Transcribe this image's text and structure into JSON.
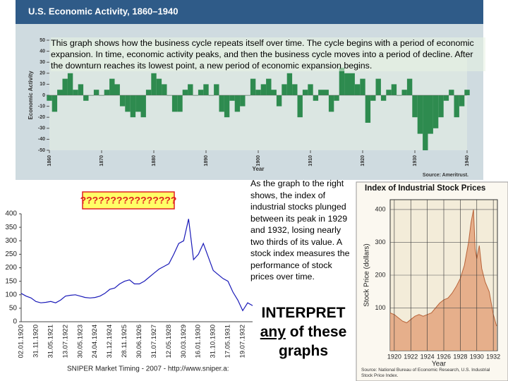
{
  "slide": {
    "overlay_text": "This graph shows how the business cycle repeats itself over time. The cycle begins with a period of economic expansion. In time, economic activity peaks, and then the business cycle moves into a period of decline. After the downturn reaches its lowest point, a new period of economic expansion begins.",
    "side_text": "As the graph  to the right shows, the index of industrial stocks plunged between its peak in 1929 and 1932, losing nearly two thirds of its value. A stock index measures the performance of stock prices over time.",
    "prompt": [
      "INTERPRET",
      "any",
      "of these graphs"
    ]
  },
  "chart_data": [
    {
      "type": "bars",
      "title": "U.S. Economic Activity, 1860–1940",
      "ylabel": "Economic Activity",
      "xlabel": "Year",
      "source": "Source: Ameritrust.",
      "color": "#2e8b4f",
      "x": [
        1860,
        1861,
        1862,
        1863,
        1864,
        1865,
        1866,
        1867,
        1868,
        1869,
        1870,
        1871,
        1872,
        1873,
        1874,
        1875,
        1876,
        1877,
        1878,
        1879,
        1880,
        1881,
        1882,
        1883,
        1884,
        1885,
        1886,
        1887,
        1888,
        1889,
        1890,
        1891,
        1892,
        1893,
        1894,
        1895,
        1896,
        1897,
        1898,
        1899,
        1900,
        1901,
        1902,
        1903,
        1904,
        1905,
        1906,
        1907,
        1908,
        1909,
        1910,
        1911,
        1912,
        1913,
        1914,
        1915,
        1916,
        1917,
        1918,
        1919,
        1920,
        1921,
        1922,
        1923,
        1924,
        1925,
        1926,
        1927,
        1928,
        1929,
        1930,
        1931,
        1932,
        1933,
        1934,
        1935,
        1936,
        1937,
        1938,
        1939,
        1940
      ],
      "values": [
        -5,
        -15,
        5,
        15,
        20,
        5,
        10,
        -5,
        0,
        5,
        0,
        5,
        15,
        10,
        -10,
        -15,
        -20,
        -15,
        -20,
        5,
        20,
        15,
        10,
        0,
        -15,
        -15,
        5,
        10,
        0,
        5,
        10,
        0,
        10,
        -15,
        -20,
        -5,
        -15,
        -10,
        0,
        15,
        5,
        10,
        15,
        5,
        -10,
        10,
        20,
        10,
        -20,
        5,
        10,
        -5,
        5,
        5,
        -15,
        -5,
        25,
        20,
        20,
        10,
        15,
        -25,
        -5,
        15,
        -5,
        5,
        10,
        0,
        5,
        15,
        -20,
        -35,
        -50,
        -35,
        -30,
        -20,
        -5,
        5,
        -20,
        -10,
        5
      ],
      "xlim": [
        1860,
        1940
      ],
      "ylim": [
        -50,
        50
      ],
      "xticks": [
        1860,
        1870,
        1880,
        1890,
        1900,
        1910,
        1920,
        1930,
        1940
      ],
      "yticks": [
        -50,
        -40,
        -30,
        -20,
        -10,
        0,
        10,
        20,
        30,
        40,
        50
      ]
    },
    {
      "type": "line",
      "title": "????????????????",
      "footer": "SNIPER Market Timing - 2007 - http://www.sniper.a:",
      "color": "#1a1ab8",
      "categories": [
        "02.01.1920",
        null,
        null,
        "31.11.1920",
        null,
        null,
        "31.05.1921",
        null,
        null,
        "13.07.1922",
        null,
        null,
        "30.05.1923",
        null,
        null,
        "24.04.1924",
        null,
        null,
        "31.12.1924",
        null,
        null,
        "28.11.1925",
        null,
        null,
        "30.06.1926",
        null,
        null,
        "31.07.1927",
        null,
        null,
        "12.05.1928",
        null,
        null,
        "30.03.1929",
        null,
        null,
        "16.01.1930",
        null,
        null,
        "31.10.1930",
        null,
        null,
        "17.05.1931",
        null,
        null,
        "19.07.1932",
        null,
        null
      ],
      "values": [
        105,
        95,
        88,
        75,
        70,
        72,
        75,
        70,
        80,
        95,
        98,
        100,
        95,
        90,
        88,
        90,
        95,
        105,
        120,
        125,
        140,
        150,
        155,
        140,
        140,
        150,
        165,
        180,
        195,
        205,
        215,
        250,
        290,
        300,
        381,
        230,
        250,
        290,
        240,
        190,
        175,
        160,
        150,
        110,
        80,
        41,
        70,
        60
      ],
      "ylim": [
        0,
        400
      ],
      "yticks": [
        0,
        50,
        100,
        150,
        200,
        250,
        300,
        350,
        400
      ]
    },
    {
      "type": "area",
      "title": "Index of Industrial Stock Prices",
      "ylabel": "Stock Price (dollars)",
      "xlabel": "Year",
      "source": "Source: National Bureau of Economic Research, U.S. Industrial Stock Price Index.",
      "color": "#e3a57c",
      "grid": true,
      "x": [
        1919.5,
        1920,
        1920.5,
        1921,
        1921.5,
        1922,
        1922.5,
        1923,
        1923.5,
        1924,
        1924.5,
        1925,
        1925.5,
        1926,
        1926.5,
        1927,
        1927.5,
        1928,
        1928.5,
        1929,
        1929.3,
        1929.6,
        1929.8,
        1930,
        1930.3,
        1930.6,
        1931,
        1931.5,
        1932,
        1932.4
      ],
      "values": [
        85,
        80,
        70,
        60,
        55,
        65,
        75,
        80,
        75,
        80,
        85,
        100,
        115,
        125,
        130,
        145,
        165,
        190,
        230,
        300,
        360,
        400,
        280,
        250,
        290,
        220,
        180,
        150,
        80,
        45
      ],
      "xlim": [
        1919.5,
        1932.5
      ],
      "ylim": [
        -30,
        430
      ],
      "xticks": [
        1920,
        1922,
        1924,
        1926,
        1928,
        1930,
        1932
      ],
      "yticks": [
        100,
        200,
        300,
        400
      ]
    }
  ]
}
